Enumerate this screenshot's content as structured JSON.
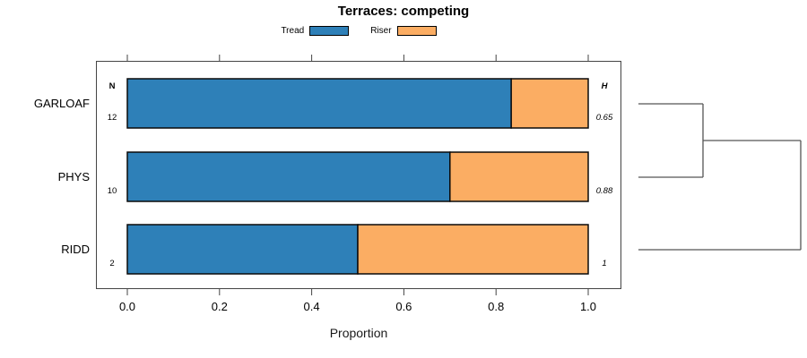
{
  "title": "Terraces: competing",
  "chart_data": {
    "type": "bar",
    "orientation": "horizontal",
    "stacked": true,
    "title": "Terraces: competing",
    "xlabel": "Proportion",
    "xlim": [
      0,
      1
    ],
    "x_tick_labels": [
      "0.0",
      "0.2",
      "0.4",
      "0.6",
      "0.8",
      "1.0"
    ],
    "x_tick_values": [
      0.0,
      0.2,
      0.4,
      0.6,
      0.8,
      1.0
    ],
    "grid": false,
    "legend_position": "top-center",
    "categories": [
      "GARLOAF",
      "PHYS",
      "RIDD"
    ],
    "series": [
      {
        "name": "Tread",
        "color": "#2E80B8",
        "values": [
          0.833,
          0.7,
          0.5
        ]
      },
      {
        "name": "Riser",
        "color": "#FBAD63",
        "values": [
          0.167,
          0.3,
          0.5
        ]
      }
    ],
    "left_annotation": {
      "header": "N",
      "values": [
        "12",
        "10",
        "2"
      ]
    },
    "right_annotation": {
      "header": "H",
      "values": [
        "0.65",
        "0.88",
        "1"
      ]
    },
    "dendrogram": {
      "leaves": [
        "GARLOAF",
        "PHYS",
        "RIDD"
      ],
      "merges": [
        {
          "members": [
            "GARLOAF",
            "PHYS"
          ],
          "order": 1
        },
        {
          "members": [
            "GARLOAF+PHYS",
            "RIDD"
          ],
          "order": 2
        }
      ]
    }
  },
  "colors": {
    "tread": "#2E80B8",
    "riser": "#FBAD63",
    "axis": "#444444",
    "bar_border": "#0a0a0a",
    "dendrogram_line": "#555555"
  }
}
